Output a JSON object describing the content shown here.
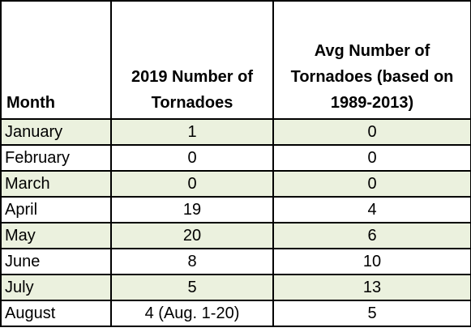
{
  "chart_data": {
    "type": "table",
    "columns": [
      "Month",
      [
        "2019 Number of",
        "Tornadoes"
      ],
      [
        "Avg Number of",
        "Tornadoes (based on",
        "1989-2013)"
      ]
    ],
    "rows": [
      {
        "month": "January",
        "count_2019": "1",
        "avg": "0"
      },
      {
        "month": "February",
        "count_2019": "0",
        "avg": "0"
      },
      {
        "month": "March",
        "count_2019": "0",
        "avg": "0"
      },
      {
        "month": "April",
        "count_2019": "19",
        "avg": "4"
      },
      {
        "month": "May",
        "count_2019": "20",
        "avg": "6"
      },
      {
        "month": "June",
        "count_2019": "8",
        "avg": "10"
      },
      {
        "month": "July",
        "count_2019": "5",
        "avg": "13"
      },
      {
        "month": "August",
        "count_2019": "4 (Aug. 1-20)",
        "avg": "5"
      }
    ],
    "row_shading": [
      "#ebf1de",
      "#ffffff"
    ]
  }
}
